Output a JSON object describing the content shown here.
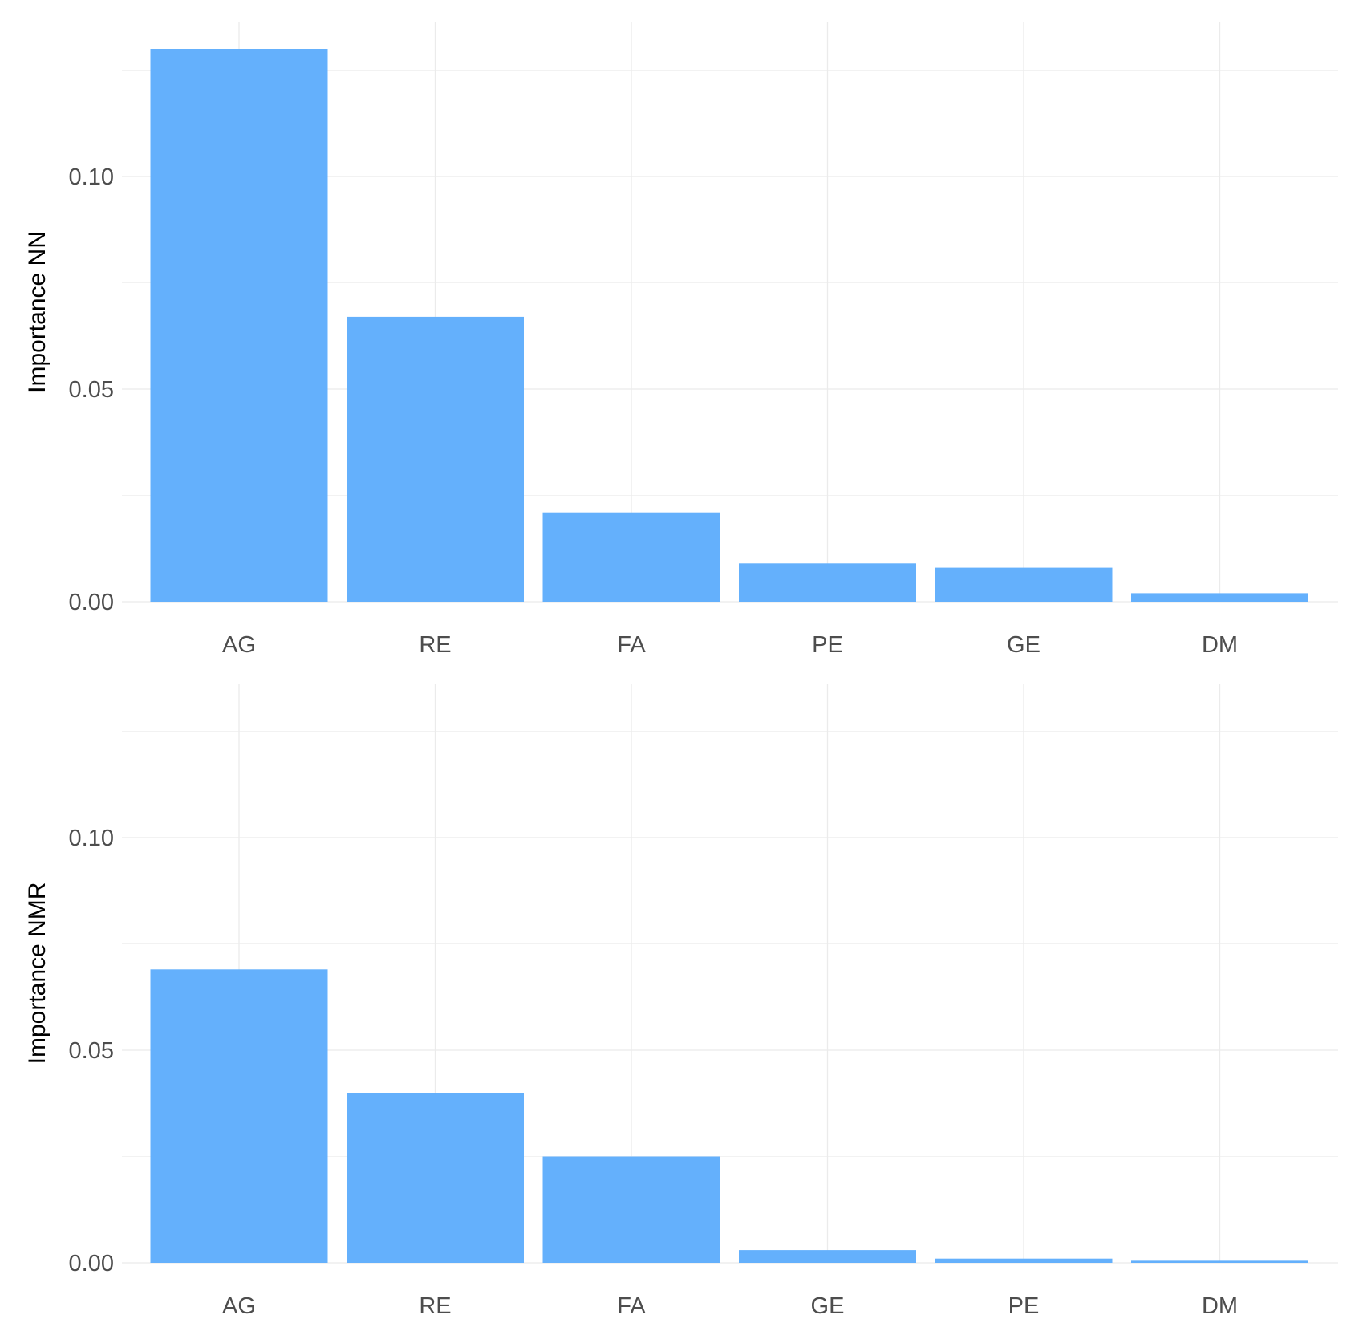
{
  "chart_data": [
    {
      "type": "bar",
      "categories": [
        "AG",
        "RE",
        "FA",
        "PE",
        "GE",
        "DM"
      ],
      "values": [
        0.13,
        0.067,
        0.021,
        0.009,
        0.008,
        0.002
      ],
      "xlabel": "",
      "ylabel": "Importance NN",
      "ylim": [
        0,
        0.13
      ],
      "yticks": [
        "0.00",
        "0.05",
        "0.10"
      ],
      "grid": true,
      "bar_color": "#64b0fc"
    },
    {
      "type": "bar",
      "categories": [
        "AG",
        "RE",
        "FA",
        "GE",
        "PE",
        "DM"
      ],
      "values": [
        0.069,
        0.04,
        0.025,
        0.003,
        0.001,
        0.0005
      ],
      "xlabel": "",
      "ylabel": "Importance NMR",
      "ylim": [
        0,
        0.13
      ],
      "yticks": [
        "0.00",
        "0.05",
        "0.10"
      ],
      "grid": true,
      "bar_color": "#64b0fc"
    }
  ]
}
